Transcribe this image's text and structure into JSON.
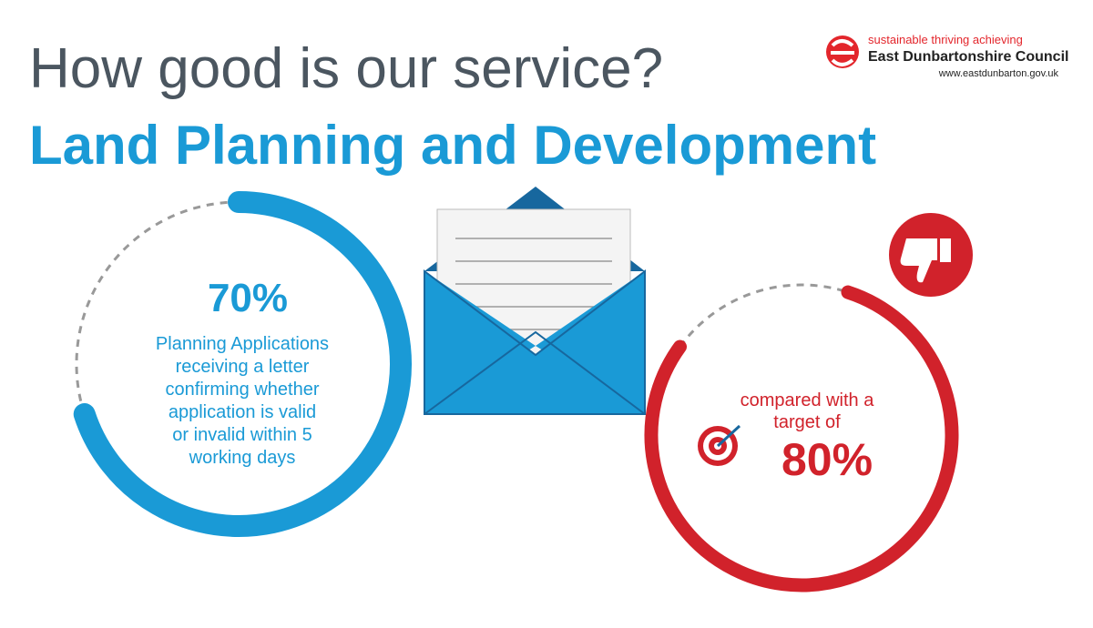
{
  "header": {
    "title": "How good is our service?",
    "subtitle": "Land Planning and Development"
  },
  "logo": {
    "tagline": "sustainable thriving achieving",
    "name": "East Dunbartonshire Council",
    "url": "www.eastdunbarton.gov.uk"
  },
  "result": {
    "value": 70,
    "label": "70%",
    "description_lines": [
      "Planning Applications",
      "receiving a letter",
      "confirming whether",
      "application is valid",
      "or invalid within 5",
      "working days"
    ],
    "color": "#1a9ad6"
  },
  "target": {
    "value": 80,
    "label": "80%",
    "text_lines": [
      "compared with a",
      "target of"
    ],
    "color": "#d1222b"
  }
}
